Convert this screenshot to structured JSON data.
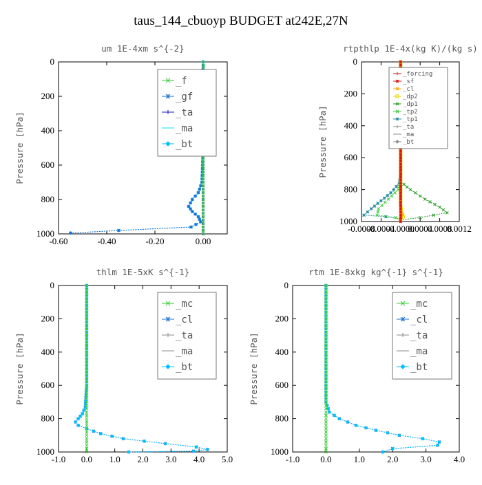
{
  "page": {
    "title": "taus_144_cbuoyp  BUDGET at242E,27N"
  },
  "colors": {
    "green": "#33cc33",
    "blue": "#1e6fd0",
    "navy": "#1010cc",
    "cyan": "#00bfff",
    "aqua": "#00e5ee",
    "red": "#dd1111",
    "orange": "#ffaa00",
    "yellow": "#dddd00",
    "darkgreen": "#229922",
    "teal": "#2a8aa0",
    "darkblue": "#101080"
  },
  "chart_data": [
    {
      "type": "line",
      "title": "um  1E-4xm s^{-2}",
      "ylabel": "Pressure [hPa]",
      "xlim": [
        -0.6,
        0.1
      ],
      "ylim": [
        1000,
        0
      ],
      "xticks": [
        "-0.60",
        "-0.40",
        "-0.20",
        "0.00"
      ],
      "xtick_values": [
        -0.6,
        -0.4,
        -0.2,
        0.0
      ],
      "yticks": [
        "0",
        "200",
        "400",
        "600",
        "800",
        "1000"
      ],
      "ytick_values": [
        0,
        200,
        400,
        600,
        800,
        1000
      ],
      "legend": {
        "entries": [
          "_f",
          "_gf",
          "_ta",
          "_ma",
          "_bt"
        ]
      },
      "series": [
        {
          "name": "_bt",
          "color": "cyan",
          "x": [
            0.0,
            0.0,
            0.0,
            -0.005,
            -0.02,
            -0.045,
            -0.06,
            -0.045,
            -0.02,
            -0.01,
            -0.05,
            -0.35,
            -0.55
          ],
          "y": [
            0,
            200,
            500,
            700,
            760,
            800,
            840,
            870,
            900,
            930,
            960,
            980,
            995
          ]
        },
        {
          "name": "_ma",
          "color": "aqua",
          "x": [
            0.0,
            0.0
          ],
          "y": [
            0,
            1000
          ]
        },
        {
          "name": "_ta",
          "color": "navy",
          "x": [
            0.0,
            0.0
          ],
          "y": [
            0,
            1000
          ]
        },
        {
          "name": "_gf",
          "color": "blue",
          "x": [
            0.0,
            0.0,
            0.0,
            -0.005,
            -0.02,
            -0.045,
            -0.06,
            -0.045,
            -0.02,
            -0.01,
            -0.05,
            -0.35,
            -0.55
          ],
          "y": [
            0,
            200,
            500,
            700,
            760,
            800,
            840,
            870,
            900,
            930,
            960,
            980,
            995
          ]
        },
        {
          "name": "_f",
          "color": "green",
          "x": [
            0.0,
            0.005,
            0.01,
            0.005,
            0.0,
            0.0,
            0.0
          ],
          "y": [
            0,
            100,
            140,
            200,
            300,
            600,
            1000
          ]
        }
      ]
    },
    {
      "type": "line",
      "title": "rtpthlp  1E-4x(kg K)/(kg s)",
      "ylabel": "Pressure [hPa]",
      "xlim": [
        -0.0008,
        0.0012
      ],
      "ylim": [
        1000,
        0
      ],
      "xticks": [
        "-0.0008",
        "-0.0004",
        "-0.0000",
        "0.0004",
        "0.0008",
        "0.0012"
      ],
      "xtick_values": [
        -0.0008,
        -0.0004,
        0.0,
        0.0004,
        0.0008,
        0.0012
      ],
      "yticks": [
        "0",
        "200",
        "400",
        "600",
        "800",
        "1000"
      ],
      "ytick_values": [
        0,
        200,
        400,
        600,
        800,
        1000
      ],
      "legend": {
        "entries": [
          "_forcing",
          "_sf",
          "_cl",
          "_dp2",
          "_dp1",
          "_tp2",
          "_tp1",
          "_ta",
          "_ma",
          "_bt"
        ]
      },
      "series": [
        {
          "name": "_tp1",
          "color": "teal",
          "x": [
            0.0,
            0.0,
            -3e-05,
            -0.0002,
            -0.0004,
            -0.0006,
            -0.00075,
            -0.0003,
            0.0
          ],
          "y": [
            0,
            700,
            760,
            820,
            870,
            920,
            960,
            970,
            985
          ]
        },
        {
          "name": "_tp2",
          "color": "green",
          "x": [
            0.0,
            0.0,
            -5e-05,
            -0.00025,
            -0.00045,
            -0.00048,
            -0.0001,
            0.0
          ],
          "y": [
            0,
            760,
            800,
            860,
            920,
            960,
            975,
            990
          ]
        },
        {
          "name": "_dp1",
          "color": "darkgreen",
          "x": [
            0.0,
            0.0,
            0.0002,
            0.0005,
            0.0008,
            0.00095,
            0.0004,
            0.0
          ],
          "y": [
            0,
            750,
            800,
            860,
            910,
            945,
            975,
            990
          ]
        },
        {
          "name": "_dp2",
          "color": "yellow",
          "x": [
            0.0,
            0.0,
            2e-05,
            5e-05,
            0.0
          ],
          "y": [
            0,
            900,
            940,
            970,
            990
          ]
        },
        {
          "name": "_cl",
          "color": "orange",
          "x": [
            0.0,
            0.0,
            3e-05,
            0.0
          ],
          "y": [
            0,
            930,
            960,
            990
          ]
        },
        {
          "name": "_sf",
          "color": "red",
          "x": [
            0.0,
            0.0
          ],
          "y": [
            0,
            1000
          ]
        },
        {
          "name": "_forcing",
          "color": "red",
          "x": [
            0.0,
            0.0
          ],
          "y": [
            0,
            1000
          ]
        }
      ]
    },
    {
      "type": "line",
      "title": "thlm  1E-5xK s^{-1}",
      "ylabel": "Pressure [hPa]",
      "xlim": [
        -1.0,
        5.0
      ],
      "ylim": [
        1000,
        0
      ],
      "xticks": [
        "-1.0",
        "0.0",
        "1.0",
        "2.0",
        "3.0",
        "4.0",
        "5.0"
      ],
      "xtick_values": [
        -1,
        0,
        1,
        2,
        3,
        4,
        5
      ],
      "yticks": [
        "0",
        "200",
        "400",
        "600",
        "800",
        "1000"
      ],
      "ytick_values": [
        0,
        200,
        400,
        600,
        800,
        1000
      ],
      "legend": {
        "entries": [
          "_mc",
          "_cl",
          "_ta",
          "_ma",
          "_bt"
        ]
      },
      "series": [
        {
          "name": "_cl",
          "color": "blue",
          "x": [
            0.0,
            0.0,
            -0.05,
            -0.15,
            -0.3,
            -0.4,
            -0.3,
            0.0,
            0.5,
            1.3,
            2.8,
            3.9,
            4.3,
            3.8,
            1.5
          ],
          "y": [
            0,
            600,
            730,
            770,
            800,
            820,
            840,
            860,
            890,
            920,
            950,
            970,
            985,
            995,
            1000
          ]
        },
        {
          "name": "_bt",
          "color": "cyan",
          "x": [
            0.0,
            0.0,
            -0.05,
            -0.15,
            -0.3,
            -0.4,
            -0.3,
            0.0,
            0.5,
            1.3,
            2.8,
            3.9,
            4.3,
            3.8,
            1.5
          ],
          "y": [
            0,
            600,
            730,
            770,
            800,
            820,
            840,
            860,
            890,
            920,
            950,
            970,
            985,
            995,
            1000
          ]
        },
        {
          "name": "_mc",
          "color": "green",
          "x": [
            0.0,
            0.0
          ],
          "y": [
            0,
            1000
          ]
        }
      ]
    },
    {
      "type": "line",
      "title": "rtm  1E-8xkg kg^{-1} s^{-1}",
      "ylabel": "Pressure [hPa]",
      "xlim": [
        -1.0,
        4.0
      ],
      "ylim": [
        1000,
        0
      ],
      "xticks": [
        "-1.0",
        "0.0",
        "1.0",
        "2.0",
        "3.0",
        "4.0"
      ],
      "xtick_values": [
        -1,
        0,
        1,
        2,
        3,
        4
      ],
      "yticks": [
        "0",
        "200",
        "400",
        "600",
        "800",
        "1000"
      ],
      "ytick_values": [
        0,
        200,
        400,
        600,
        800,
        1000
      ],
      "legend": {
        "entries": [
          "_mc",
          "_cl",
          "_ta",
          "_ma",
          "_bt"
        ]
      },
      "series": [
        {
          "name": "_cl",
          "color": "blue",
          "x": [
            0.0,
            0.0,
            0.1,
            0.4,
            0.9,
            1.5,
            2.2,
            2.9,
            3.4,
            3.35,
            2.0,
            1.7
          ],
          "y": [
            0,
            700,
            760,
            800,
            840,
            870,
            900,
            920,
            940,
            960,
            980,
            1000
          ]
        },
        {
          "name": "_bt",
          "color": "cyan",
          "x": [
            0.0,
            0.0,
            0.1,
            0.4,
            0.9,
            1.5,
            2.2,
            2.9,
            3.4,
            3.35,
            2.0,
            1.7
          ],
          "y": [
            0,
            700,
            760,
            800,
            840,
            870,
            900,
            920,
            940,
            960,
            980,
            1000
          ]
        },
        {
          "name": "_mc",
          "color": "green",
          "x": [
            0.0,
            0.0
          ],
          "y": [
            0,
            1000
          ]
        }
      ]
    }
  ]
}
